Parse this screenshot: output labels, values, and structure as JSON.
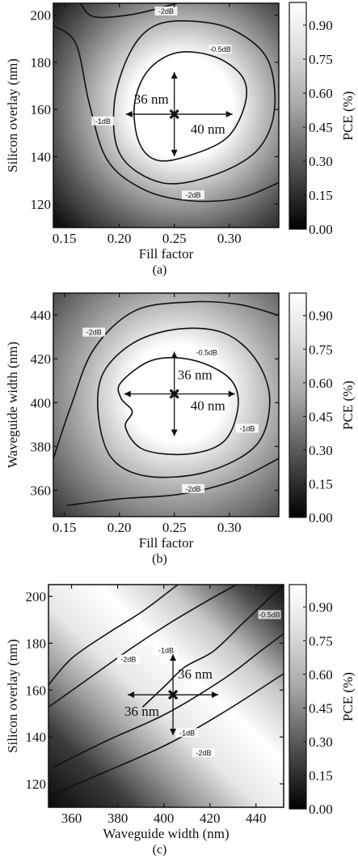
{
  "chart_data": [
    {
      "type": "heatmap",
      "panel_label": "(a)",
      "xlabel": "Fill factor",
      "ylabel": "Silicon overlay (nm)",
      "xlim": [
        0.14,
        0.345
      ],
      "ylim": [
        110,
        205
      ],
      "xticks": [
        "0.15",
        "0.20",
        "0.25",
        "0.30"
      ],
      "xtick_values": [
        0.15,
        0.2,
        0.25,
        0.3
      ],
      "yticks": [
        "120",
        "140",
        "160",
        "180",
        "200"
      ],
      "ytick_values": [
        120,
        140,
        160,
        180,
        200
      ],
      "optimum": {
        "x": 0.25,
        "y": 158
      },
      "vertical_span_label": "36 nm",
      "horizontal_span_label": "40 nm",
      "contour_labels": [
        "-2dB",
        "-0.5dB",
        "-1dB",
        "-2dB"
      ],
      "colorbar": {
        "label": "PCE (%)",
        "ticks": [
          "0.90",
          "0.75",
          "0.60",
          "0.45",
          "0.30",
          "0.15",
          "0.00"
        ],
        "tick_values": [
          0.9,
          0.75,
          0.6,
          0.45,
          0.3,
          0.15,
          0.0
        ],
        "range": [
          0.0,
          1.0
        ]
      }
    },
    {
      "type": "heatmap",
      "panel_label": "(b)",
      "xlabel": "Fill factor",
      "ylabel": "Waveguide width (nm)",
      "xlim": [
        0.14,
        0.345
      ],
      "ylim": [
        348,
        450
      ],
      "xticks": [
        "0.15",
        "0.20",
        "0.25",
        "0.30"
      ],
      "xtick_values": [
        0.15,
        0.2,
        0.25,
        0.3
      ],
      "yticks": [
        "360",
        "380",
        "400",
        "420",
        "440"
      ],
      "ytick_values": [
        360,
        380,
        400,
        420,
        440
      ],
      "optimum": {
        "x": 0.25,
        "y": 404
      },
      "vertical_span_label": "36 nm",
      "horizontal_span_label": "40 nm",
      "contour_labels": [
        "-2dB",
        "-0.5dB",
        "-1dB",
        "-2dB"
      ],
      "colorbar": {
        "label": "PCE (%)",
        "ticks": [
          "0.90",
          "0.75",
          "0.60",
          "0.45",
          "0.30",
          "0.15",
          "0.00"
        ],
        "tick_values": [
          0.9,
          0.75,
          0.6,
          0.45,
          0.3,
          0.15,
          0.0
        ],
        "range": [
          0.0,
          1.0
        ]
      }
    },
    {
      "type": "heatmap",
      "panel_label": "(c)",
      "xlabel": "Waveguide width (nm)",
      "ylabel": "Silicon overlay (nm)",
      "xlim": [
        350,
        452
      ],
      "ylim": [
        110,
        205
      ],
      "xticks": [
        "360",
        "380",
        "400",
        "420",
        "440"
      ],
      "xtick_values": [
        360,
        380,
        400,
        420,
        440
      ],
      "yticks": [
        "120",
        "140",
        "160",
        "180",
        "200"
      ],
      "ytick_values": [
        120,
        140,
        160,
        180,
        200
      ],
      "optimum": {
        "x": 404,
        "y": 158
      },
      "vertical_span_label": "36 nm",
      "horizontal_span_label": "36 nm",
      "contour_labels": [
        "-2dB",
        "-1dB",
        "-0.5dB",
        "-1dB",
        "-2dB"
      ],
      "colorbar": {
        "label": "PCE (%)",
        "ticks": [
          "0.90",
          "0.75",
          "0.60",
          "0.45",
          "0.30",
          "0.15",
          "0.00"
        ],
        "tick_values": [
          0.9,
          0.75,
          0.6,
          0.45,
          0.3,
          0.15,
          0.0
        ],
        "range": [
          0.0,
          1.0
        ]
      }
    }
  ]
}
